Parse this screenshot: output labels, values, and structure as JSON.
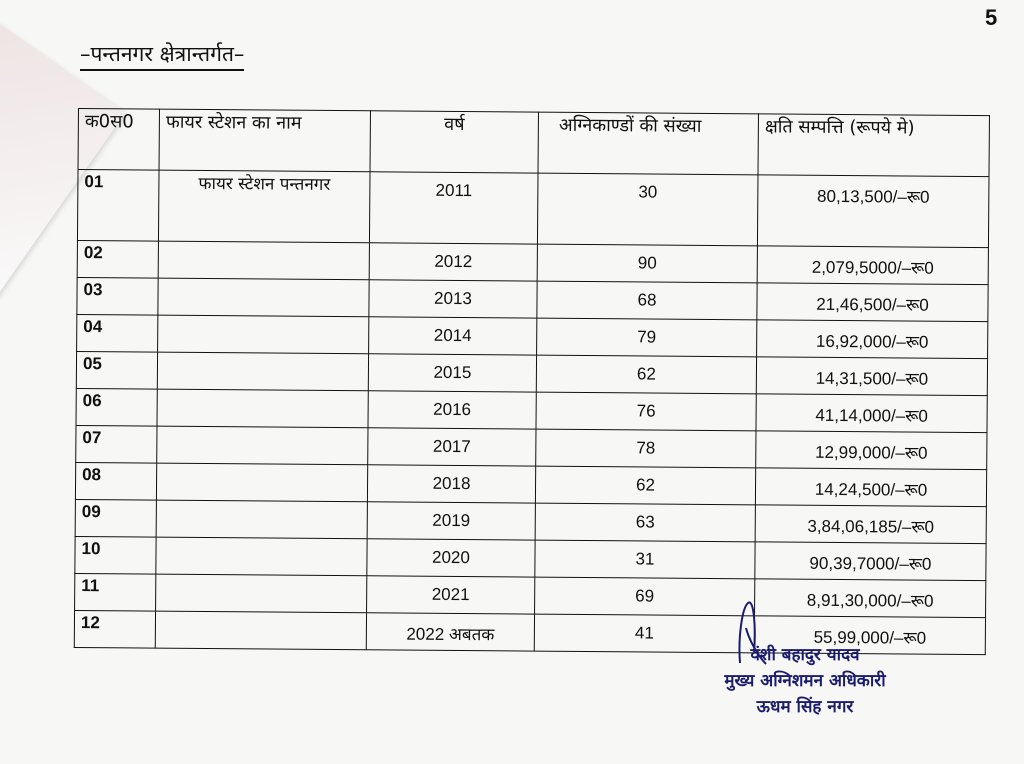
{
  "page_number": "5",
  "heading": "–पन्तनगर क्षेत्रान्तर्गत–",
  "table": {
    "headers": [
      "क0स0",
      "फायर स्टेशन का नाम",
      "वर्ष",
      "अग्निकाण्डों की संख्या",
      "क्षति सम्पत्ति (रूपये मे)"
    ],
    "rows": [
      {
        "sn": "01",
        "station": "फायर स्टेशन पन्तनगर",
        "year": "2011",
        "count": "30",
        "damage": "80,13,500/–रू0"
      },
      {
        "sn": "02",
        "station": "",
        "year": "2012",
        "count": "90",
        "damage": "2,079,5000/–रू0"
      },
      {
        "sn": "03",
        "station": "",
        "year": "2013",
        "count": "68",
        "damage": "21,46,500/–रू0"
      },
      {
        "sn": "04",
        "station": "",
        "year": "2014",
        "count": "79",
        "damage": "16,92,000/–रू0"
      },
      {
        "sn": "05",
        "station": "",
        "year": "2015",
        "count": "62",
        "damage": "14,31,500/–रू0"
      },
      {
        "sn": "06",
        "station": "",
        "year": "2016",
        "count": "76",
        "damage": "41,14,000/–रू0"
      },
      {
        "sn": "07",
        "station": "",
        "year": "2017",
        "count": "78",
        "damage": "12,99,000/–रू0"
      },
      {
        "sn": "08",
        "station": "",
        "year": "2018",
        "count": "62",
        "damage": "14,24,500/–रू0"
      },
      {
        "sn": "09",
        "station": "",
        "year": "2019",
        "count": "63",
        "damage": "3,84,06,185/–रू0"
      },
      {
        "sn": "10",
        "station": "",
        "year": "2020",
        "count": "31",
        "damage": "90,39,7000/–रू0"
      },
      {
        "sn": "11",
        "station": "",
        "year": "2021",
        "count": "69",
        "damage": "8,91,30,000/–रू0"
      },
      {
        "sn": "12",
        "station": "",
        "year": "2022 अबतक",
        "count": "41",
        "damage": "55,99,000/–रू0"
      }
    ]
  },
  "signature": {
    "name": "वंशी बहादुर यादव",
    "designation": "मुख्य अग्निशमन अधिकारी",
    "location": "ऊधम सिंह नगर",
    "ink_color": "#1c1c6e"
  }
}
